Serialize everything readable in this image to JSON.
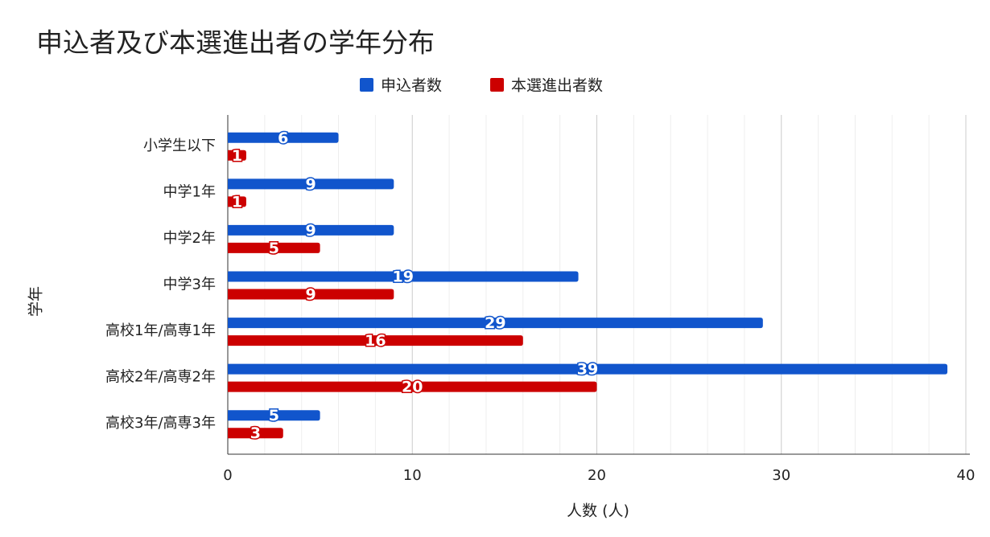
{
  "chart_data": {
    "type": "hbar",
    "title": "申込者及び本選進出者の学年分布",
    "x_label": "人数 (人)",
    "y_label": "学年",
    "categories": [
      "小学生以下",
      "中学1年",
      "中学2年",
      "中学3年",
      "高校1年/高専1年",
      "高校2年/高専2年",
      "高校3年/高専3年"
    ],
    "series": [
      {
        "name": "申込者数",
        "color": "#1155cc",
        "values": [
          6,
          9,
          9,
          19,
          29,
          39,
          5
        ]
      },
      {
        "name": "本選進出者数",
        "color": "#cc0000",
        "values": [
          1,
          1,
          5,
          9,
          16,
          20,
          3
        ]
      }
    ],
    "xlim": [
      0,
      40
    ],
    "xticks": [
      0,
      10,
      20,
      30,
      40
    ],
    "xminorticks": [
      2,
      4,
      6,
      8,
      12,
      14,
      16,
      18,
      22,
      24,
      26,
      28,
      32,
      34,
      36,
      38
    ],
    "grid": true,
    "legend": "top"
  }
}
